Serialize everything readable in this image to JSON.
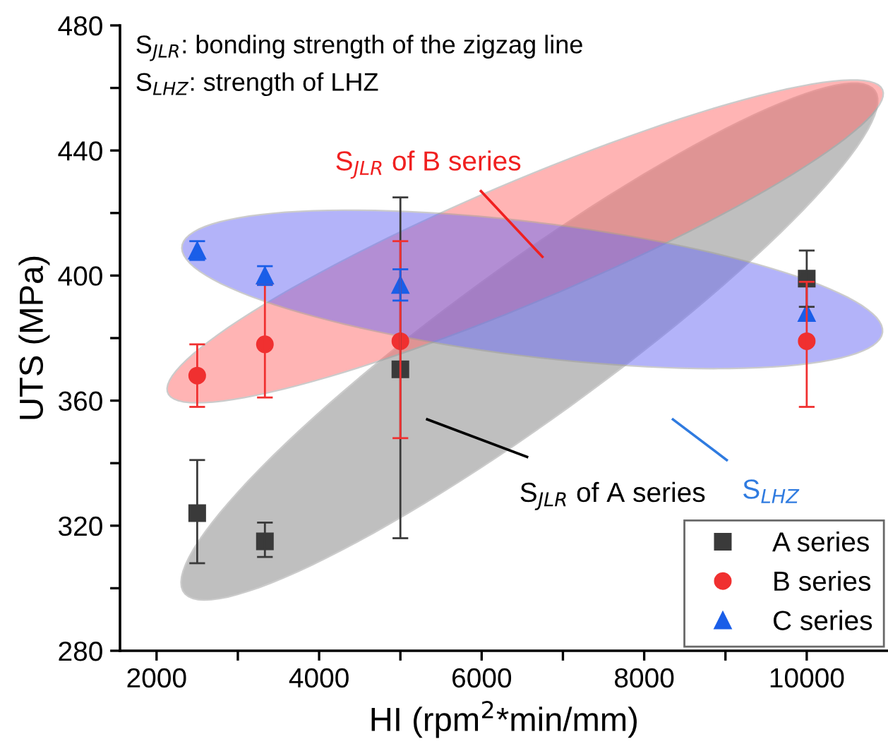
{
  "chart_data": {
    "type": "scatter",
    "xlabel": "HI (rpm$^{2}$*min/mm)",
    "ylabel": "UTS (MPa)",
    "x": [
      2500,
      3333,
      5000,
      10000
    ],
    "series": [
      {
        "name": "A series",
        "color": "#3a3a3a",
        "marker": "square",
        "values": [
          324,
          315,
          370,
          399
        ],
        "errors": [
          [
            308,
            341
          ],
          [
            310,
            321
          ],
          [
            316,
            425
          ],
          [
            390,
            408
          ]
        ]
      },
      {
        "name": "B series",
        "color": "#f03030",
        "marker": "circle",
        "values": [
          368,
          378,
          379,
          379
        ],
        "errors": [
          [
            358,
            378
          ],
          [
            361,
            397
          ],
          [
            348,
            411
          ],
          [
            358,
            398
          ]
        ]
      },
      {
        "name": "C series",
        "color": "#1a5ee8",
        "marker": "triangle",
        "values": [
          408,
          400,
          397,
          388
        ],
        "errors": [
          [
            405,
            411
          ],
          [
            397,
            403
          ],
          [
            392,
            402
          ],
          null
        ]
      }
    ],
    "xlim": [
      1550,
      11000
    ],
    "ylim": [
      280,
      480
    ],
    "xticks": [
      2000,
      {
        "value": 3000,
        "label": null
      },
      4000,
      {
        "value": 5000,
        "label": null
      },
      6000,
      {
        "value": 7000,
        "label": null
      },
      8000,
      {
        "value": 9000,
        "label": null
      },
      10000
    ],
    "yticks": [
      280,
      {
        "value": 300,
        "label": null
      },
      320,
      {
        "value": 340,
        "label": null
      },
      360,
      {
        "value": 380,
        "label": null
      },
      400,
      {
        "value": 420,
        "label": null
      },
      440,
      {
        "value": 460,
        "label": null
      },
      480
    ],
    "annotations": [
      "S$_{JLR}$: bonding strength of the zigzag line",
      "S$_{LHZ}$: strength of LHZ",
      "S$_{JLR}$ of B series",
      "S$_{JLR}$ of A series",
      "S$_{LHZ}$"
    ],
    "legend": "bottom right",
    "grid": false
  }
}
